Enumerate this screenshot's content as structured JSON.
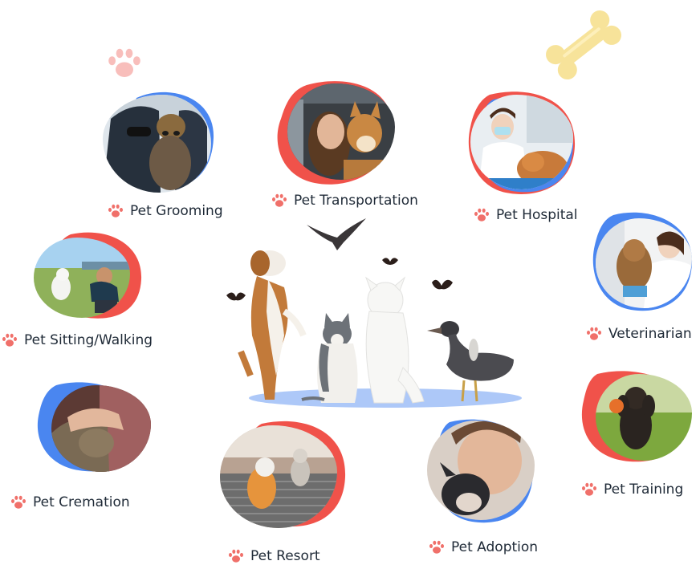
{
  "colors": {
    "red": "#F0524A",
    "blue": "#4A86F0",
    "paw": "#F0706A",
    "text": "#1f2a37",
    "bone": "#F7E39A"
  },
  "services": [
    {
      "name": "Pet Grooming",
      "icon": "paw-icon"
    },
    {
      "name": "Pet Transportation",
      "icon": "paw-icon"
    },
    {
      "name": "Pet Hospital",
      "icon": "paw-icon"
    },
    {
      "name": "Pet Sitting/Walking",
      "icon": "paw-icon"
    },
    {
      "name": "Veterinarian",
      "icon": "paw-icon"
    },
    {
      "name": "Pet Cremation",
      "icon": "paw-icon"
    },
    {
      "name": "Pet Training",
      "icon": "paw-icon"
    },
    {
      "name": "Pet Resort",
      "icon": "paw-icon"
    },
    {
      "name": "Pet Adoption",
      "icon": "paw-icon"
    }
  ]
}
